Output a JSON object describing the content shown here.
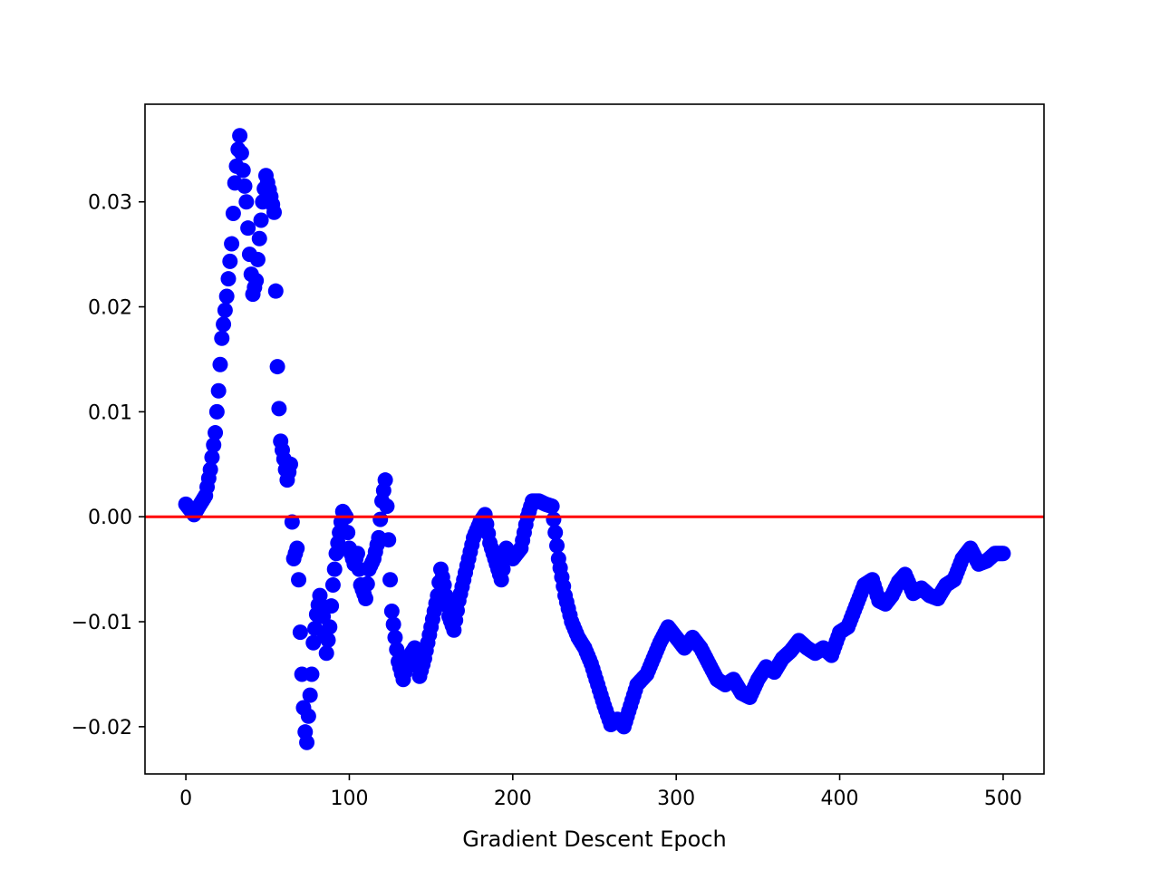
{
  "chart_data": {
    "type": "scatter",
    "title": "",
    "xlabel": "Gradient Descent Epoch",
    "ylabel": "",
    "xlim": [
      -25,
      525
    ],
    "ylim": [
      -0.0245,
      0.0393
    ],
    "xticks": [
      0,
      100,
      200,
      300,
      400,
      500
    ],
    "xtick_labels": [
      "0",
      "100",
      "200",
      "300",
      "400",
      "500"
    ],
    "yticks": [
      -0.02,
      -0.01,
      0.0,
      0.01,
      0.02,
      0.03
    ],
    "ytick_labels": [
      "−0.02",
      "−0.01",
      "0.00",
      "0.01",
      "0.02",
      "0.03"
    ],
    "grid": false,
    "legend": "none",
    "reference_line": {
      "y": 0.0,
      "color": "#ff0000"
    },
    "series": [
      {
        "color": "#0000ff",
        "anchors": [
          [
            0,
            0.0012
          ],
          [
            5,
            0.0002
          ],
          [
            8,
            0.001
          ],
          [
            12,
            0.002
          ],
          [
            15,
            0.0045
          ],
          [
            18,
            0.008
          ],
          [
            20,
            0.012
          ],
          [
            22,
            0.017
          ],
          [
            25,
            0.021
          ],
          [
            28,
            0.026
          ],
          [
            30,
            0.0318
          ],
          [
            32,
            0.035
          ],
          [
            33,
            0.0363
          ],
          [
            35,
            0.033
          ],
          [
            37,
            0.03
          ],
          [
            39,
            0.025
          ],
          [
            41,
            0.0212
          ],
          [
            43,
            0.0225
          ],
          [
            45,
            0.0265
          ],
          [
            47,
            0.03
          ],
          [
            49,
            0.0325
          ],
          [
            52,
            0.0305
          ],
          [
            54,
            0.029
          ],
          [
            55,
            0.0215
          ],
          [
            56,
            0.0143
          ],
          [
            57,
            0.0103
          ],
          [
            58,
            0.0072
          ],
          [
            60,
            0.0055
          ],
          [
            62,
            0.0035
          ],
          [
            64,
            0.005
          ],
          [
            65,
            -0.0005
          ],
          [
            66,
            -0.004
          ],
          [
            68,
            -0.003
          ],
          [
            69,
            -0.006
          ],
          [
            70,
            -0.011
          ],
          [
            71,
            -0.015
          ],
          [
            72,
            -0.0182
          ],
          [
            73,
            -0.0205
          ],
          [
            74,
            -0.0215
          ],
          [
            75,
            -0.019
          ],
          [
            76,
            -0.017
          ],
          [
            77,
            -0.015
          ],
          [
            78,
            -0.012
          ],
          [
            80,
            -0.0093
          ],
          [
            82,
            -0.0075
          ],
          [
            84,
            -0.0095
          ],
          [
            86,
            -0.013
          ],
          [
            88,
            -0.0105
          ],
          [
            90,
            -0.0065
          ],
          [
            92,
            -0.0035
          ],
          [
            94,
            -0.0015
          ],
          [
            96,
            0.0005
          ],
          [
            98,
            0.0
          ],
          [
            100,
            -0.003
          ],
          [
            103,
            -0.0045
          ],
          [
            105,
            -0.0035
          ],
          [
            107,
            -0.0065
          ],
          [
            110,
            -0.0078
          ],
          [
            112,
            -0.005
          ],
          [
            115,
            -0.004
          ],
          [
            118,
            -0.002
          ],
          [
            120,
            0.0015
          ],
          [
            122,
            0.0035
          ],
          [
            123,
            0.001
          ],
          [
            124,
            -0.0022
          ],
          [
            125,
            -0.006
          ],
          [
            126,
            -0.009
          ],
          [
            128,
            -0.0115
          ],
          [
            130,
            -0.0138
          ],
          [
            133,
            -0.0155
          ],
          [
            136,
            -0.0135
          ],
          [
            140,
            -0.0125
          ],
          [
            143,
            -0.0152
          ],
          [
            146,
            -0.0135
          ],
          [
            150,
            -0.0105
          ],
          [
            152,
            -0.009
          ],
          [
            154,
            -0.0075
          ],
          [
            156,
            -0.005
          ],
          [
            158,
            -0.0065
          ],
          [
            161,
            -0.0095
          ],
          [
            164,
            -0.0108
          ],
          [
            167,
            -0.008
          ],
          [
            170,
            -0.006
          ],
          [
            173,
            -0.004
          ],
          [
            176,
            -0.002
          ],
          [
            180,
            -0.0005
          ],
          [
            183,
            0.0002
          ],
          [
            186,
            -0.0025
          ],
          [
            190,
            -0.0045
          ],
          [
            193,
            -0.006
          ],
          [
            196,
            -0.003
          ],
          [
            200,
            -0.004
          ],
          [
            205,
            -0.003
          ],
          [
            209,
            0.0
          ],
          [
            212,
            0.0015
          ],
          [
            216,
            0.0015
          ],
          [
            220,
            0.0012
          ],
          [
            224,
            0.001
          ],
          [
            226,
            -0.0015
          ],
          [
            228,
            -0.004
          ],
          [
            232,
            -0.0075
          ],
          [
            236,
            -0.01
          ],
          [
            240,
            -0.0115
          ],
          [
            244,
            -0.0125
          ],
          [
            248,
            -0.014
          ],
          [
            252,
            -0.016
          ],
          [
            256,
            -0.018
          ],
          [
            260,
            -0.0198
          ],
          [
            264,
            -0.0193
          ],
          [
            268,
            -0.02
          ],
          [
            272,
            -0.018
          ],
          [
            276,
            -0.016
          ],
          [
            282,
            -0.015
          ],
          [
            286,
            -0.0135
          ],
          [
            290,
            -0.012
          ],
          [
            295,
            -0.0105
          ],
          [
            300,
            -0.0115
          ],
          [
            305,
            -0.0125
          ],
          [
            310,
            -0.0115
          ],
          [
            315,
            -0.0125
          ],
          [
            320,
            -0.014
          ],
          [
            325,
            -0.0155
          ],
          [
            330,
            -0.016
          ],
          [
            335,
            -0.0155
          ],
          [
            340,
            -0.0168
          ],
          [
            345,
            -0.0172
          ],
          [
            350,
            -0.0155
          ],
          [
            355,
            -0.0143
          ],
          [
            360,
            -0.0148
          ],
          [
            365,
            -0.0135
          ],
          [
            370,
            -0.0128
          ],
          [
            375,
            -0.0118
          ],
          [
            380,
            -0.0125
          ],
          [
            385,
            -0.013
          ],
          [
            390,
            -0.0125
          ],
          [
            395,
            -0.0132
          ],
          [
            400,
            -0.011
          ],
          [
            405,
            -0.0105
          ],
          [
            410,
            -0.0085
          ],
          [
            415,
            -0.0065
          ],
          [
            420,
            -0.006
          ],
          [
            424,
            -0.008
          ],
          [
            428,
            -0.0083
          ],
          [
            432,
            -0.0075
          ],
          [
            436,
            -0.0062
          ],
          [
            440,
            -0.0055
          ],
          [
            445,
            -0.0073
          ],
          [
            450,
            -0.0068
          ],
          [
            455,
            -0.0075
          ],
          [
            460,
            -0.0078
          ],
          [
            465,
            -0.0065
          ],
          [
            470,
            -0.006
          ],
          [
            475,
            -0.004
          ],
          [
            480,
            -0.003
          ],
          [
            485,
            -0.0045
          ],
          [
            490,
            -0.0042
          ],
          [
            495,
            -0.0035
          ],
          [
            500,
            -0.0035
          ]
        ]
      }
    ]
  }
}
